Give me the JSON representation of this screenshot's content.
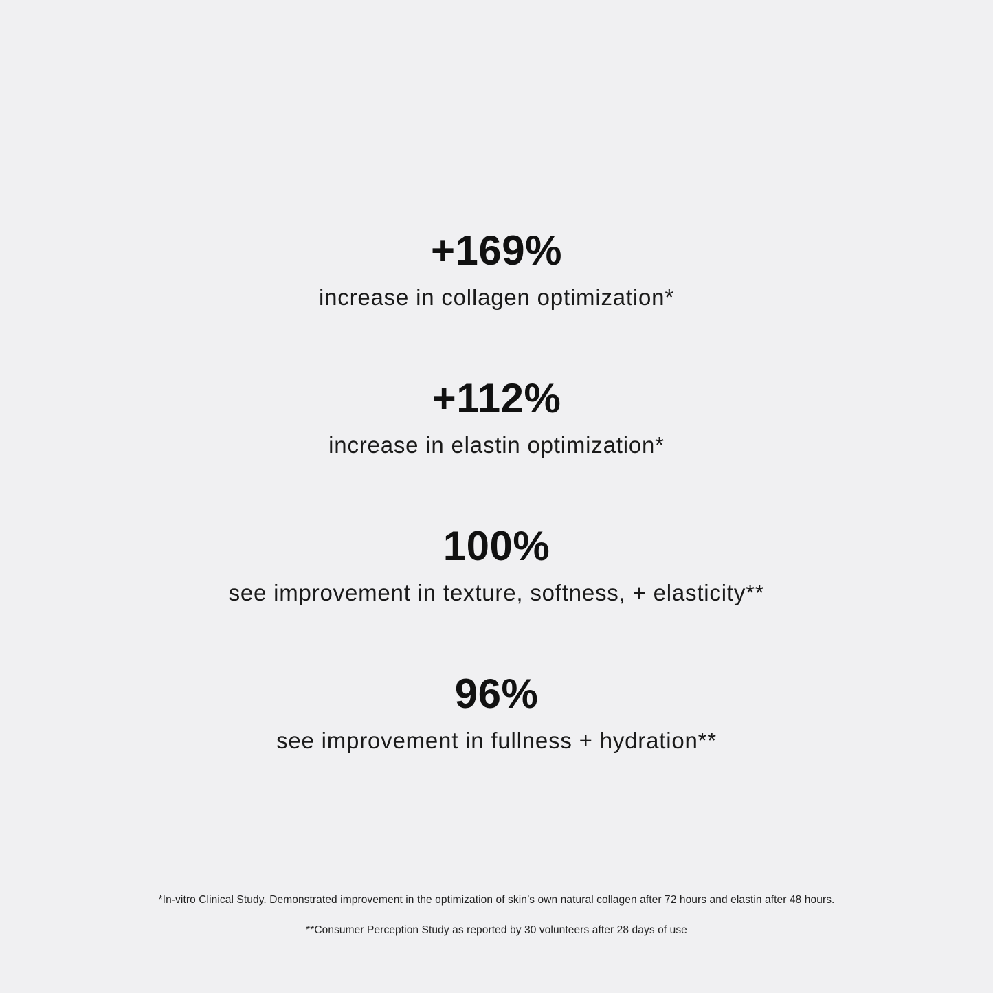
{
  "stats": [
    {
      "value": "+169%",
      "description": "increase in collagen optimization*"
    },
    {
      "value": "+112%",
      "description": "increase in elastin optimization*"
    },
    {
      "value": "100%",
      "description": "see improvement in texture, softness, + elasticity**"
    },
    {
      "value": "96%",
      "description": "see improvement in fullness + hydration**"
    }
  ],
  "footnotes": [
    "*In-vitro Clinical Study. Demonstrated improvement in the optimization of skin’s own natural collagen after 72 hours and elastin after 48 hours.",
    "**Consumer Perception Study as reported by 30 volunteers after 28 days of use"
  ],
  "colors": {
    "background": "#f0f0f2",
    "text": "#111111"
  }
}
